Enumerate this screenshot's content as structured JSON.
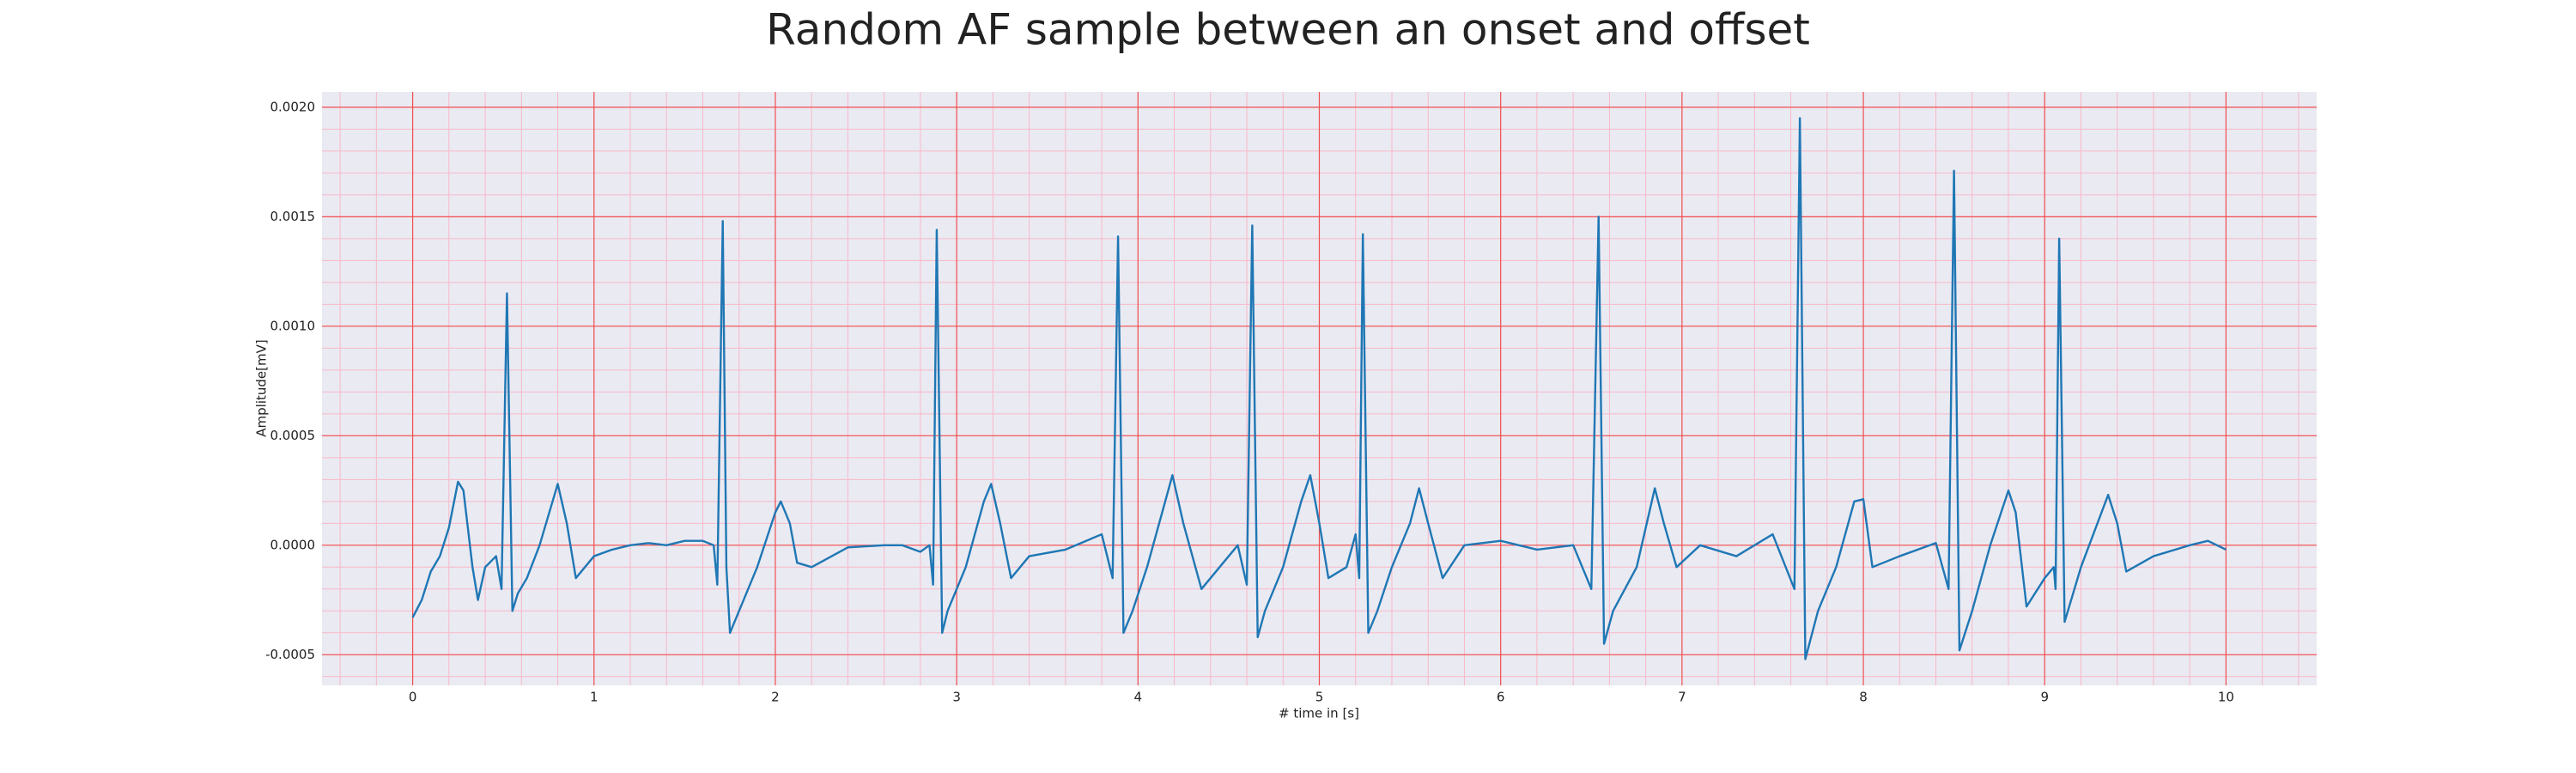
{
  "chart_data": {
    "type": "line",
    "title": "Random AF sample between an onset and offset",
    "xlabel": "# time in [s]",
    "ylabel": "Amplitude[mV]",
    "color": "#1f77b4",
    "grid": true,
    "minor_grid": true,
    "xlim": [
      -0.5,
      10.5
    ],
    "xticks": [
      0,
      1,
      2,
      3,
      4,
      5,
      6,
      7,
      8,
      9,
      10
    ],
    "ylim": [
      -0.00064,
      0.00207
    ],
    "yticks": [
      -0.0005,
      {
        "value": 0,
        "label": "0.0000"
      },
      0.0005,
      {
        "value": 0.001,
        "label": "0.0010"
      },
      0.0015,
      {
        "value": 0.002,
        "label": "0.0020"
      }
    ],
    "x": [
      0,
      0.05,
      0.1,
      0.15,
      0.2,
      0.25,
      0.28,
      0.33,
      0.36,
      0.4,
      0.46,
      0.49,
      0.52,
      0.55,
      0.58,
      0.63,
      0.7,
      0.8,
      0.85,
      0.9,
      0.95,
      1.0,
      1.1,
      1.2,
      1.3,
      1.4,
      1.5,
      1.6,
      1.66,
      1.68,
      1.71,
      1.73,
      1.75,
      1.8,
      1.9,
      2.0,
      2.03,
      2.08,
      2.12,
      2.2,
      2.4,
      2.6,
      2.7,
      2.8,
      2.85,
      2.87,
      2.89,
      2.92,
      2.95,
      3.05,
      3.15,
      3.19,
      3.24,
      3.3,
      3.4,
      3.6,
      3.8,
      3.86,
      3.89,
      3.92,
      3.97,
      4.05,
      4.15,
      4.19,
      4.25,
      4.35,
      4.45,
      4.55,
      4.6,
      4.63,
      4.66,
      4.7,
      4.8,
      4.9,
      4.95,
      5.0,
      5.05,
      5.15,
      5.2,
      5.22,
      5.24,
      5.27,
      5.32,
      5.4,
      5.5,
      5.55,
      5.6,
      5.68,
      5.8,
      6.0,
      6.2,
      6.4,
      6.5,
      6.54,
      6.57,
      6.62,
      6.75,
      6.85,
      6.9,
      6.97,
      7.1,
      7.3,
      7.5,
      7.62,
      7.65,
      7.68,
      7.75,
      7.85,
      7.95,
      8.0,
      8.05,
      8.2,
      8.4,
      8.47,
      8.5,
      8.53,
      8.6,
      8.7,
      8.8,
      8.84,
      8.9,
      9.0,
      9.05,
      9.06,
      9.08,
      9.11,
      9.2,
      9.35,
      9.4,
      9.45,
      9.6,
      9.8,
      9.9,
      10.0
    ],
    "values": [
      -0.00033,
      -0.00025,
      -0.00012,
      -5e-05,
      8e-05,
      0.00029,
      0.00025,
      -0.0001,
      -0.00025,
      -0.0001,
      -5e-05,
      -0.0002,
      0.00115,
      -0.0003,
      -0.00022,
      -0.00015,
      0.0,
      0.00028,
      0.0001,
      -0.00015,
      -0.0001,
      -5e-05,
      -2e-05,
      0.0,
      1e-05,
      0.0,
      2e-05,
      2e-05,
      0.0,
      -0.00018,
      0.00148,
      -0.0001,
      -0.0004,
      -0.0003,
      -0.0001,
      0.00015,
      0.0002,
      0.0001,
      -8e-05,
      -0.0001,
      -1e-05,
      0.0,
      0.0,
      -3e-05,
      0.0,
      -0.00018,
      0.00144,
      -0.0004,
      -0.0003,
      -0.0001,
      0.0002,
      0.00028,
      0.0001,
      -0.00015,
      -5e-05,
      -2e-05,
      5e-05,
      -0.00015,
      0.00141,
      -0.0004,
      -0.0003,
      -0.0001,
      0.0002,
      0.00032,
      0.0001,
      -0.0002,
      -0.0001,
      0.0,
      -0.00018,
      0.00146,
      -0.00042,
      -0.0003,
      -0.0001,
      0.0002,
      0.00032,
      0.0001,
      -0.00015,
      -0.0001,
      5e-05,
      -0.00015,
      0.00142,
      -0.0004,
      -0.0003,
      -0.0001,
      0.0001,
      0.00026,
      0.0001,
      -0.00015,
      0.0,
      2e-05,
      -2e-05,
      0.0,
      -0.0002,
      0.0015,
      -0.00045,
      -0.0003,
      -0.0001,
      0.00026,
      0.0001,
      -0.0001,
      0.0,
      -5e-05,
      5e-05,
      -0.0002,
      0.00195,
      -0.00052,
      -0.0003,
      -0.0001,
      0.0002,
      0.00021,
      -0.0001,
      -5e-05,
      1e-05,
      -0.0002,
      0.00171,
      -0.00048,
      -0.0003,
      0.0,
      0.00025,
      0.00015,
      -0.00028,
      -0.00015,
      -0.0001,
      -0.0002,
      0.0014,
      -0.00035,
      -0.0001,
      0.00023,
      0.0001,
      -0.00012,
      -5e-05,
      0.0,
      2e-05,
      -2e-05
    ]
  }
}
